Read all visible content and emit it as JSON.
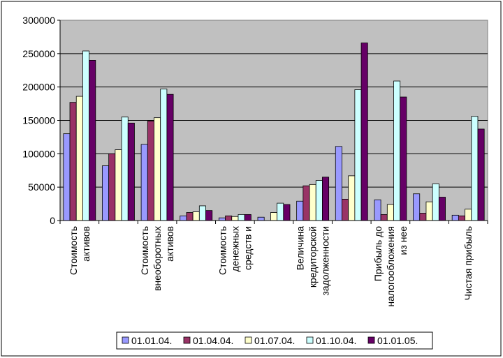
{
  "chart_data": {
    "type": "bar",
    "categories": [
      [
        "Стоимость",
        "активов"
      ],
      [],
      [
        "Стоимость",
        "внеоборотных",
        "активов"
      ],
      [],
      [
        "Стоимость",
        "денежных",
        "средств и"
      ],
      [],
      [
        "Величина",
        "кредиторской",
        "задолженности"
      ],
      [],
      [
        "Прибыль до",
        "налогообложения",
        "из нее"
      ],
      [],
      [
        "Чистая прибыль"
      ]
    ],
    "series": [
      {
        "name": "01.01.04.",
        "color": "#9999ff",
        "values": [
          130000,
          82000,
          114000,
          7000,
          4000,
          5000,
          29000,
          111000,
          31000,
          40000,
          8000
        ]
      },
      {
        "name": "01.04.04.",
        "color": "#993366",
        "values": [
          177000,
          100000,
          149000,
          12000,
          7000,
          0,
          52000,
          32000,
          9000,
          11000,
          7000
        ]
      },
      {
        "name": "01.07.04.",
        "color": "#ffffcc",
        "values": [
          186000,
          106000,
          154000,
          13000,
          6000,
          12000,
          54000,
          67000,
          24000,
          28000,
          17000
        ]
      },
      {
        "name": "01.10.04.",
        "color": "#ccffff",
        "values": [
          254000,
          155000,
          197000,
          22000,
          9000,
          26000,
          60000,
          196000,
          209000,
          55000,
          156000
        ]
      },
      {
        "name": "01.01.05.",
        "color": "#660066",
        "values": [
          240000,
          146000,
          189000,
          15000,
          9000,
          24000,
          65000,
          266000,
          185000,
          35000,
          137000
        ]
      }
    ],
    "yticks": [
      "0",
      "50000",
      "100000",
      "150000",
      "200000",
      "250000",
      "300000"
    ],
    "ylim": [
      0,
      300000
    ],
    "grid": true,
    "legend": "bottom",
    "plot_background": "#c0c0c0"
  }
}
